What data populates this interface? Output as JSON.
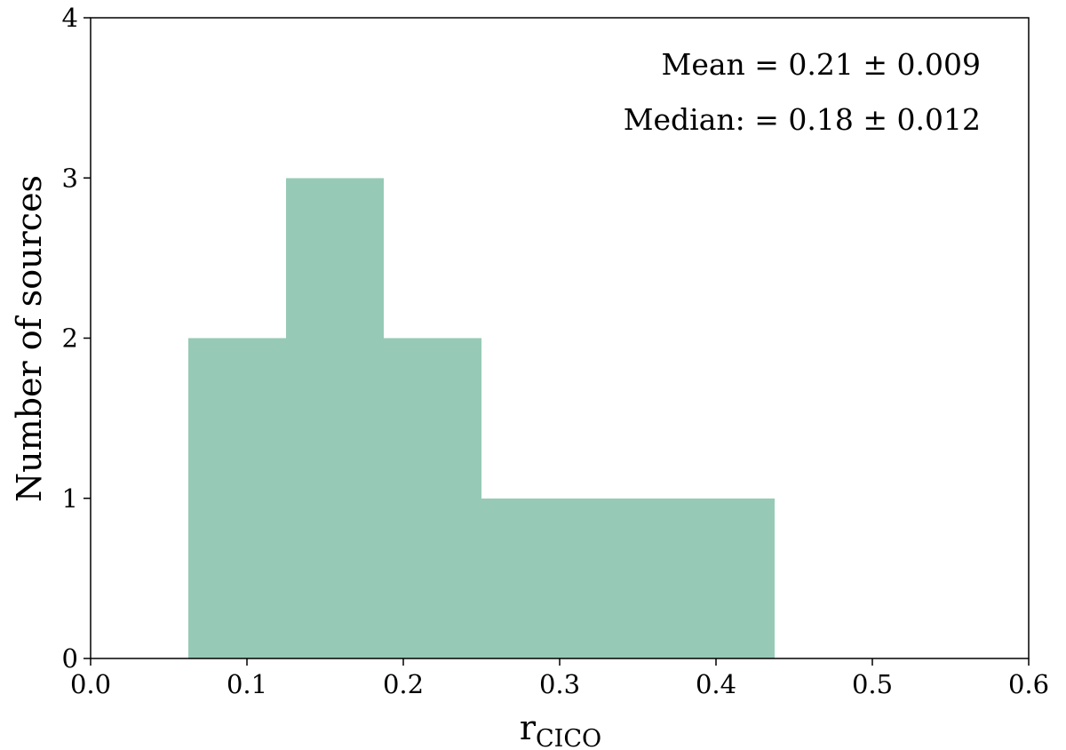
{
  "chart_data": {
    "type": "bar",
    "subtype": "histogram",
    "bar_color": "#96cab6",
    "bins": [
      {
        "x0": 0.0625,
        "x1": 0.125,
        "count": 2
      },
      {
        "x0": 0.125,
        "x1": 0.1875,
        "count": 3
      },
      {
        "x0": 0.1875,
        "x1": 0.25,
        "count": 2
      },
      {
        "x0": 0.25,
        "x1": 0.3125,
        "count": 1
      },
      {
        "x0": 0.3125,
        "x1": 0.375,
        "count": 1
      },
      {
        "x0": 0.375,
        "x1": 0.4375,
        "count": 1
      }
    ],
    "xlim": [
      0.0,
      0.6
    ],
    "ylim": [
      0,
      4
    ],
    "xticks": [
      0.0,
      0.1,
      0.2,
      0.3,
      0.4,
      0.5,
      0.6
    ],
    "yticks": [
      0,
      1,
      2,
      3,
      4
    ],
    "xtick_labels": [
      "0.0",
      "0.1",
      "0.2",
      "0.3",
      "0.4",
      "0.5",
      "0.6"
    ],
    "ytick_labels": [
      "0",
      "1",
      "2",
      "3",
      "4"
    ],
    "xlabel_main": "r",
    "xlabel_sub": "CICO",
    "ylabel": "Number of sources",
    "annotations": {
      "mean": "Mean = 0.21 ± 0.009",
      "median": "Median: = 0.18 ± 0.012"
    },
    "grid": false
  }
}
